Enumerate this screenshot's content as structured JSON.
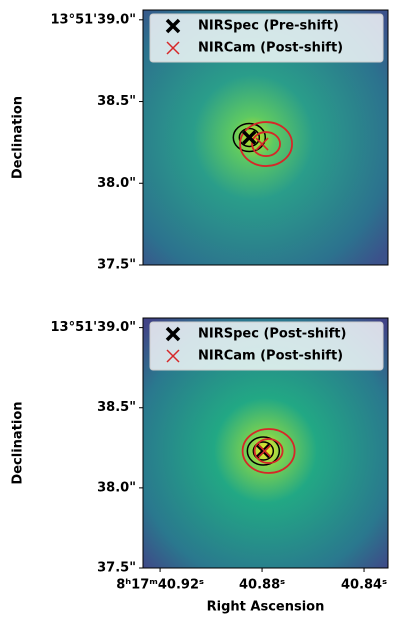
{
  "chart_data": [
    {
      "type": "scatter",
      "ylabel": "Declination",
      "xlim": [
        40.9267,
        40.8306
      ],
      "ylim": [
        37.5,
        39.06
      ],
      "yticks": [
        {
          "value": 39.0,
          "label": "13°51'39.0\""
        },
        {
          "value": 38.5,
          "label": "38.5\""
        },
        {
          "value": 38.0,
          "label": "38.0\""
        },
        {
          "value": 37.5,
          "label": "37.5\""
        }
      ],
      "series": [
        {
          "name": "NIRSpec (Pre-shift)",
          "color": "#000000",
          "marker": "X",
          "x": [
            40.885
          ],
          "y": [
            38.28
          ]
        },
        {
          "name": "NIRCam (Post-shift)",
          "color": "#d62728",
          "marker": "x",
          "x": [
            40.88
          ],
          "y": [
            38.24
          ]
        }
      ]
    },
    {
      "type": "scatter",
      "ylabel": "Declination",
      "xlabel": "Right Ascension",
      "xlim": [
        40.9267,
        40.8306
      ],
      "ylim": [
        37.5,
        39.06
      ],
      "xticks": [
        {
          "value": 40.92,
          "label": "8ʰ17ᵐ40.92ˢ"
        },
        {
          "value": 40.88,
          "label": "40.88ˢ"
        },
        {
          "value": 40.84,
          "label": "40.84ˢ"
        }
      ],
      "yticks": [
        {
          "value": 39.0,
          "label": "13°51'39.0\""
        },
        {
          "value": 38.5,
          "label": "38.5\""
        },
        {
          "value": 38.0,
          "label": "38.0\""
        },
        {
          "value": 37.5,
          "label": "37.5\""
        }
      ],
      "series": [
        {
          "name": "NIRSpec (Post-shift)",
          "color": "#000000",
          "marker": "X",
          "x": [
            40.8795
          ],
          "y": [
            38.23
          ]
        },
        {
          "name": "NIRCam (Post-shift)",
          "color": "#d62728",
          "marker": "x",
          "x": [
            40.879
          ],
          "y": [
            38.23
          ]
        }
      ]
    }
  ]
}
